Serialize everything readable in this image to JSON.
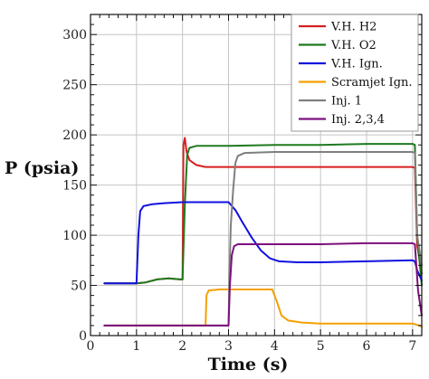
{
  "chart_data": {
    "type": "line",
    "title": "",
    "xlabel": "Time (s)",
    "ylabel": "P (psia)",
    "xlim": [
      0,
      7.2
    ],
    "ylim": [
      0,
      320
    ],
    "xticks": [
      "0",
      "1",
      "2",
      "3",
      "4",
      "5",
      "6",
      "7"
    ],
    "yticks": [
      "0",
      "50",
      "100",
      "150",
      "200",
      "250",
      "300"
    ],
    "grid": true,
    "legend_position": "top-right",
    "series": [
      {
        "name": "V.H. H2",
        "color": "#d62020",
        "points": [
          [
            0.3,
            52
          ],
          [
            1.0,
            52
          ],
          [
            1.2,
            53
          ],
          [
            1.45,
            56
          ],
          [
            1.7,
            57
          ],
          [
            1.95,
            56
          ],
          [
            2.0,
            56
          ],
          [
            2.02,
            190
          ],
          [
            2.05,
            197
          ],
          [
            2.09,
            183
          ],
          [
            2.15,
            175
          ],
          [
            2.3,
            170
          ],
          [
            2.5,
            168
          ],
          [
            3.0,
            168
          ],
          [
            4.0,
            168
          ],
          [
            5.0,
            168
          ],
          [
            6.0,
            168
          ],
          [
            7.0,
            168
          ],
          [
            7.05,
            167
          ],
          [
            7.1,
            90
          ],
          [
            7.2,
            62
          ]
        ]
      },
      {
        "name": "V.H. O2",
        "color": "#1f7a1f",
        "points": [
          [
            0.3,
            52
          ],
          [
            1.0,
            52
          ],
          [
            1.2,
            53
          ],
          [
            1.45,
            56
          ],
          [
            1.7,
            57
          ],
          [
            1.95,
            56
          ],
          [
            2.0,
            56
          ],
          [
            2.05,
            130
          ],
          [
            2.1,
            180
          ],
          [
            2.15,
            187
          ],
          [
            2.3,
            189
          ],
          [
            3.0,
            189
          ],
          [
            4.0,
            190
          ],
          [
            5.0,
            190
          ],
          [
            6.0,
            191
          ],
          [
            7.0,
            191
          ],
          [
            7.05,
            190
          ],
          [
            7.1,
            100
          ],
          [
            7.2,
            50
          ]
        ]
      },
      {
        "name": "V.H. Ign.",
        "color": "#1010e0",
        "points": [
          [
            0.3,
            52
          ],
          [
            1.0,
            52
          ],
          [
            1.04,
            100
          ],
          [
            1.08,
            124
          ],
          [
            1.15,
            129
          ],
          [
            1.35,
            131
          ],
          [
            1.6,
            132
          ],
          [
            2.0,
            133
          ],
          [
            2.5,
            133
          ],
          [
            3.0,
            133
          ],
          [
            3.15,
            125
          ],
          [
            3.3,
            113
          ],
          [
            3.5,
            98
          ],
          [
            3.7,
            85
          ],
          [
            3.9,
            77
          ],
          [
            4.1,
            74
          ],
          [
            4.5,
            73
          ],
          [
            5.0,
            73
          ],
          [
            6.0,
            74
          ],
          [
            7.0,
            75
          ],
          [
            7.05,
            74
          ],
          [
            7.1,
            65
          ],
          [
            7.2,
            55
          ]
        ]
      },
      {
        "name": "Scramjet Ign.",
        "color": "#f5a000",
        "points": [
          [
            0.3,
            10
          ],
          [
            1.0,
            10
          ],
          [
            2.0,
            10
          ],
          [
            2.5,
            10
          ],
          [
            2.52,
            40
          ],
          [
            2.57,
            45
          ],
          [
            2.8,
            46
          ],
          [
            3.5,
            46
          ],
          [
            3.95,
            46
          ],
          [
            4.05,
            34
          ],
          [
            4.15,
            20
          ],
          [
            4.3,
            15
          ],
          [
            4.6,
            13
          ],
          [
            5.0,
            12
          ],
          [
            6.0,
            12
          ],
          [
            7.0,
            12
          ],
          [
            7.15,
            10
          ],
          [
            7.2,
            9
          ]
        ]
      },
      {
        "name": "Inj. 1",
        "color": "#7f7f7f",
        "points": [
          [
            0.3,
            10
          ],
          [
            1.0,
            10
          ],
          [
            2.0,
            10
          ],
          [
            2.5,
            10
          ],
          [
            3.0,
            10
          ],
          [
            3.02,
            60
          ],
          [
            3.05,
            110
          ],
          [
            3.1,
            145
          ],
          [
            3.15,
            172
          ],
          [
            3.2,
            179
          ],
          [
            3.35,
            182
          ],
          [
            4.0,
            183
          ],
          [
            5.0,
            183
          ],
          [
            6.0,
            183
          ],
          [
            7.0,
            183
          ],
          [
            7.05,
            182
          ],
          [
            7.1,
            100
          ],
          [
            7.2,
            70
          ]
        ]
      },
      {
        "name": "Inj. 2,3,4",
        "color": "#7d107d",
        "points": [
          [
            0.3,
            10
          ],
          [
            1.0,
            10
          ],
          [
            2.0,
            10
          ],
          [
            2.5,
            10
          ],
          [
            3.0,
            10
          ],
          [
            3.03,
            50
          ],
          [
            3.07,
            80
          ],
          [
            3.12,
            89
          ],
          [
            3.2,
            91
          ],
          [
            3.5,
            91
          ],
          [
            4.0,
            91
          ],
          [
            5.0,
            91
          ],
          [
            6.0,
            92
          ],
          [
            7.0,
            92
          ],
          [
            7.05,
            91
          ],
          [
            7.12,
            45
          ],
          [
            7.2,
            20
          ]
        ]
      }
    ]
  }
}
